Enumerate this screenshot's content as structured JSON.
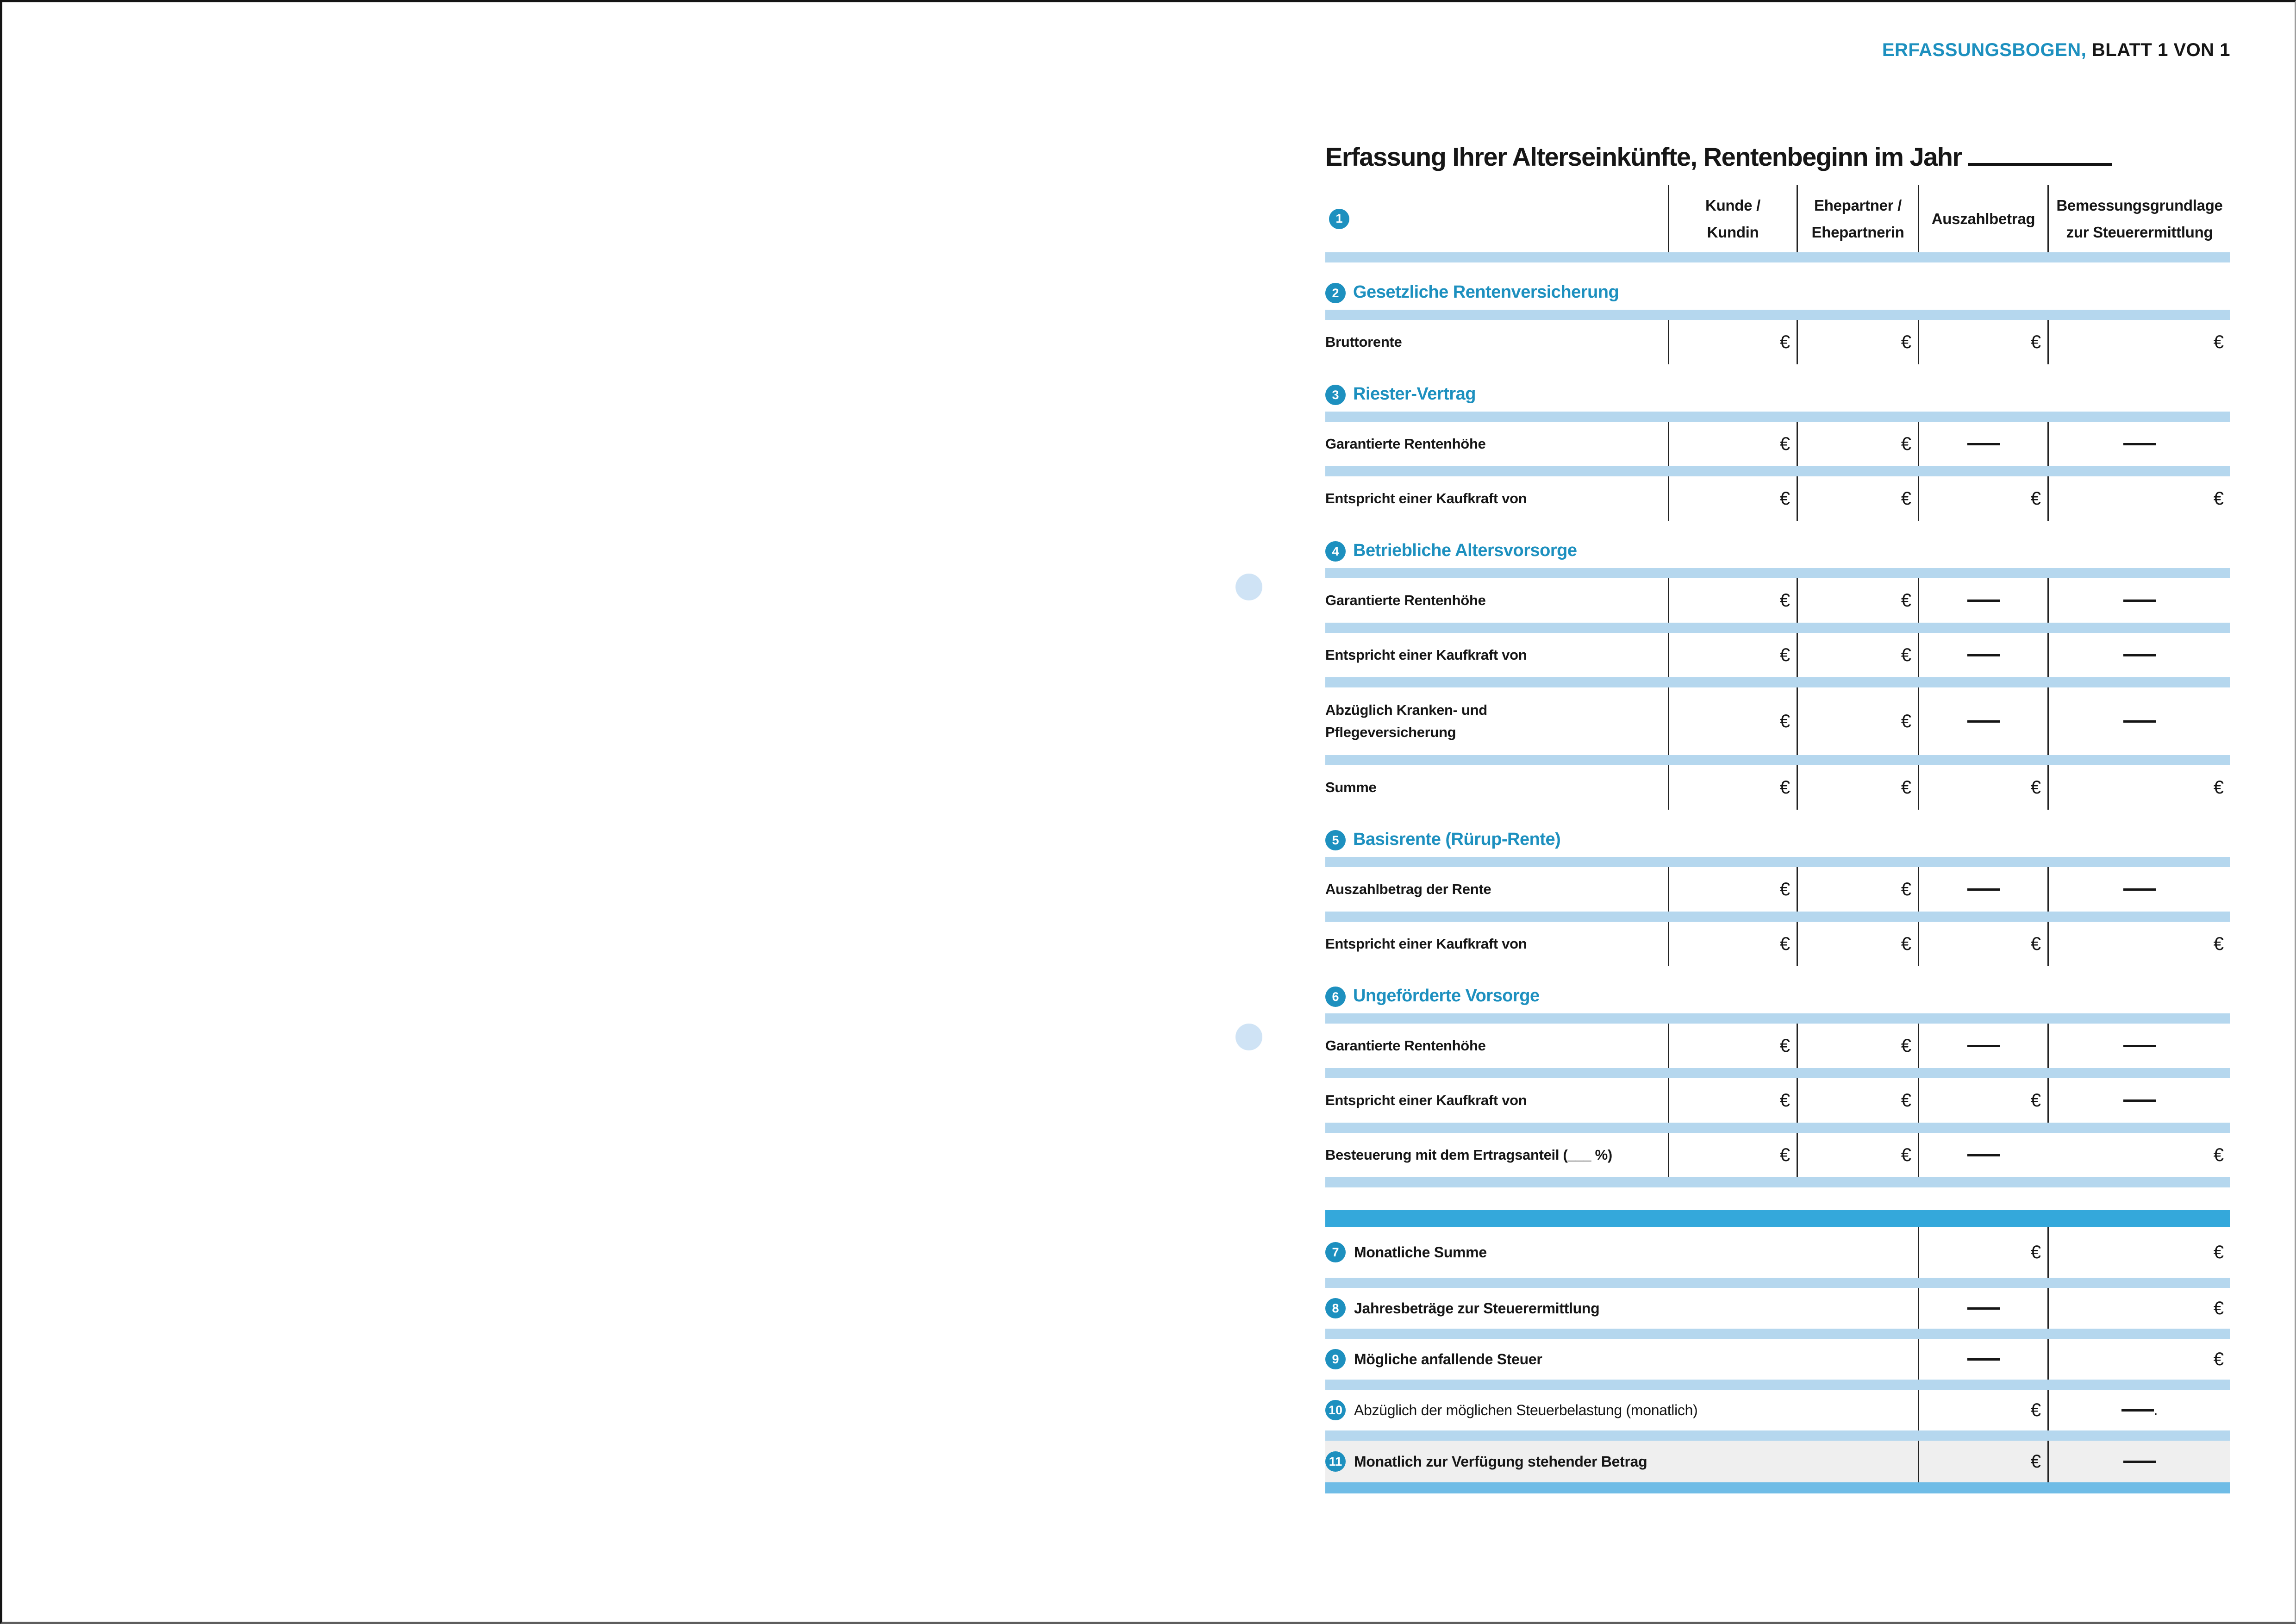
{
  "page": {
    "header_label": "ERFASSUNGSBOGEN,",
    "header_sheet": "BLATT 1 VON 1",
    "title": "Erfassung Ihrer Alterseinkünfte, Rentenbeginn im Jahr"
  },
  "colors": {
    "accent_blue": "#1d90bf",
    "light_band_blue": "#b5d7ee",
    "dark_band_blue": "#34a8db",
    "bottom_band_blue": "#6fbce6",
    "highlight_row_gray": "#efefef",
    "punch_hole_blue": "#cfe3f5"
  },
  "table": {
    "header": {
      "num": "1",
      "columns": [
        "Kunde /\nKundin",
        "Ehepartner /\nEhepartnerin",
        "Auszahlbetrag",
        "Bemessungsgrundlage\nzur Steuerermittlung"
      ]
    },
    "sections": [
      {
        "num": "2",
        "title": "Gesetzliche Rentenversicherung",
        "rows": [
          {
            "label": "Bruttorente",
            "cells": [
              "€",
              "€",
              "€",
              "€"
            ]
          }
        ]
      },
      {
        "num": "3",
        "title": "Riester-Vertrag",
        "rows": [
          {
            "label": "Garantierte Rentenhöhe",
            "cells": [
              "€",
              "€",
              "——",
              "——"
            ]
          },
          {
            "label": "Entspricht einer Kaufkraft von",
            "cells": [
              "€",
              "€",
              "€",
              "€"
            ]
          }
        ]
      },
      {
        "num": "4",
        "title": "Betriebliche Altersvorsorge",
        "rows": [
          {
            "label": "Garantierte Rentenhöhe",
            "cells": [
              "€",
              "€",
              "——",
              "——"
            ]
          },
          {
            "label": "Entspricht einer Kaufkraft von",
            "cells": [
              "€",
              "€",
              "——",
              "——"
            ]
          },
          {
            "label": "Abzüglich Kranken- und\nPflegeversicherung",
            "tall": true,
            "cells": [
              "€",
              "€",
              "——",
              "——"
            ]
          },
          {
            "label": "Summe",
            "cells": [
              "€",
              "€",
              "€",
              "€"
            ]
          }
        ]
      },
      {
        "num": "5",
        "title": "Basisrente (Rürup-Rente)",
        "rows": [
          {
            "label": "Auszahlbetrag der Rente",
            "cells": [
              "€",
              "€",
              "——",
              "——"
            ]
          },
          {
            "label": "Entspricht einer Kaufkraft von",
            "cells": [
              "€",
              "€",
              "€",
              "€"
            ]
          }
        ]
      },
      {
        "num": "6",
        "title": "Ungeförderte Vorsorge",
        "rows": [
          {
            "label": "Garantierte Rentenhöhe",
            "cells": [
              "€",
              "€",
              "——",
              "——"
            ]
          },
          {
            "label": "Entspricht einer Kaufkraft von",
            "cells": [
              "€",
              "€",
              "€",
              "——"
            ]
          },
          {
            "label": "Besteuerung mit dem Ertragsanteil (___ %)",
            "no_last_divider": true,
            "cells": [
              "€",
              "€",
              "——",
              "€"
            ]
          }
        ]
      }
    ],
    "summary": [
      {
        "num": "7",
        "label": "Monatliche Summe",
        "bold": true,
        "highlight": false,
        "auszahlbetrag": "€",
        "bemessung": "€"
      },
      {
        "num": "8",
        "label": "Jahresbeträge zur Steuerermittlung",
        "bold": true,
        "highlight": false,
        "auszahlbetrag": "——",
        "bemessung": "€"
      },
      {
        "num": "9",
        "label": "Mögliche anfallende Steuer",
        "bold": true,
        "highlight": false,
        "auszahlbetrag": "——",
        "bemessung": "€"
      },
      {
        "num": "10",
        "label": "Abzüglich der möglichen Steuerbelastung (monatlich)",
        "bold": false,
        "highlight": false,
        "auszahlbetrag": "€",
        "bemessung": "——."
      },
      {
        "num": "11",
        "label": "Monatlich zur Verfügung stehender Betrag",
        "bold": true,
        "highlight": true,
        "auszahlbetrag": "€",
        "bemessung": "——"
      }
    ]
  }
}
